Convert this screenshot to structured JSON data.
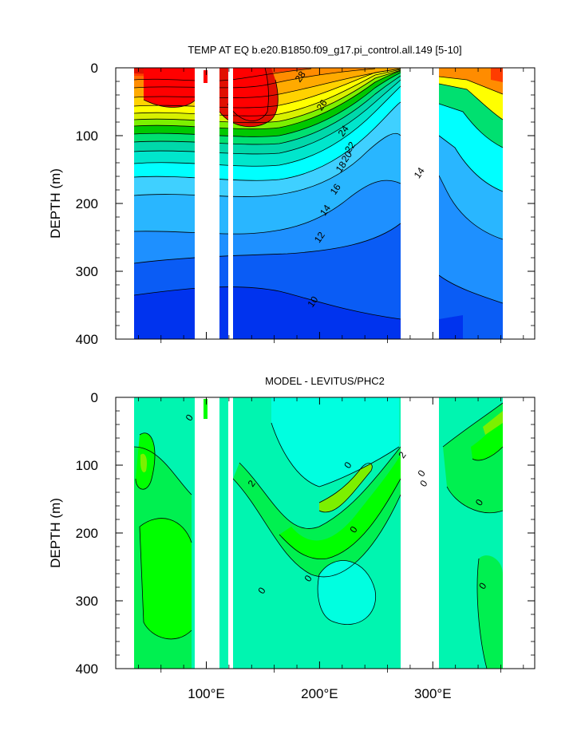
{
  "chart_data": [
    {
      "type": "contour",
      "title": "TEMP AT EQ b.e20.B1850.f09_g17.pi_control.all.149 [5-10]",
      "xlabel": "",
      "ylabel": "DEPTH (m)",
      "xlim": [
        20,
        390
      ],
      "ylim": [
        400,
        0
      ],
      "data_xrange": [
        45,
        370
      ],
      "land_gaps": [
        [
          97,
          118
        ],
        [
          122,
          128
        ],
        [
          278,
          314
        ]
      ],
      "xticks": [
        100,
        200,
        300
      ],
      "xtick_labels": [
        "",
        "",
        ""
      ],
      "yticks": [
        0,
        100,
        200,
        300,
        400
      ],
      "ytick_labels": [
        "0",
        "100",
        "200",
        "300",
        "400"
      ],
      "levels": [
        10,
        11,
        12,
        13,
        14,
        15,
        16,
        17,
        18,
        19,
        20,
        21,
        22,
        23,
        24,
        25,
        26,
        27,
        28
      ],
      "colors": [
        "#0033ee",
        "#0a5cf5",
        "#1e90ff",
        "#29b6ff",
        "#3fd0ff",
        "#00ffff",
        "#00e6cc",
        "#00d8aa",
        "#00e070",
        "#00c800",
        "#7cf000",
        "#d8f000",
        "#ffff00",
        "#ffd200",
        "#ffaa00",
        "#ff8c00",
        "#ff6a00",
        "#ff3c00",
        "#e01000",
        "#ff0000"
      ],
      "contour_labels": [
        {
          "text": "28",
          "x": 163,
          "y": 13
        },
        {
          "text": "26",
          "x": 182,
          "y": 55
        },
        {
          "text": "24",
          "x": 201,
          "y": 93
        },
        {
          "text": "22",
          "x": 207,
          "y": 117
        },
        {
          "text": "20",
          "x": 204,
          "y": 131
        },
        {
          "text": "18",
          "x": 199,
          "y": 146
        },
        {
          "text": "16",
          "x": 194,
          "y": 179
        },
        {
          "text": "14",
          "x": 185,
          "y": 210
        },
        {
          "text": "12",
          "x": 180,
          "y": 250
        },
        {
          "text": "10",
          "x": 174,
          "y": 345
        },
        {
          "text": "14",
          "x": 268,
          "y": 155
        }
      ]
    },
    {
      "type": "contour",
      "title": "MODEL - LEVITUS/PHC2",
      "xlabel": "",
      "ylabel": "DEPTH (m)",
      "xlim": [
        20,
        390
      ],
      "ylim": [
        400,
        0
      ],
      "data_xrange": [
        45,
        370
      ],
      "land_gaps": [
        [
          97,
          118
        ],
        [
          122,
          128
        ],
        [
          278,
          314
        ]
      ],
      "xticks": [
        100,
        200,
        300
      ],
      "xtick_labels": [
        "100°E",
        "200°E",
        "300°E"
      ],
      "yticks": [
        0,
        100,
        200,
        300,
        400
      ],
      "ytick_labels": [
        "0",
        "100",
        "200",
        "300",
        "400"
      ],
      "levels": [
        -2,
        0,
        1,
        2,
        3
      ],
      "colors": [
        "#00ffe0",
        "#00f5b0",
        "#00f050",
        "#00ff00",
        "#7cf000",
        "#c8f000"
      ],
      "contour_labels": [
        {
          "text": "0",
          "x": 65,
          "y": 30
        },
        {
          "text": "2",
          "x": 120,
          "y": 127
        },
        {
          "text": "0",
          "x": 205,
          "y": 100
        },
        {
          "text": "0",
          "x": 210,
          "y": 195
        },
        {
          "text": "2",
          "x": 253,
          "y": 85
        },
        {
          "text": "0",
          "x": 270,
          "y": 112
        },
        {
          "text": "0",
          "x": 272,
          "y": 127
        },
        {
          "text": "0",
          "x": 170,
          "y": 267
        },
        {
          "text": "0",
          "x": 129,
          "y": 285
        },
        {
          "text": "0",
          "x": 321,
          "y": 155
        },
        {
          "text": "0",
          "x": 324,
          "y": 278
        }
      ]
    }
  ]
}
